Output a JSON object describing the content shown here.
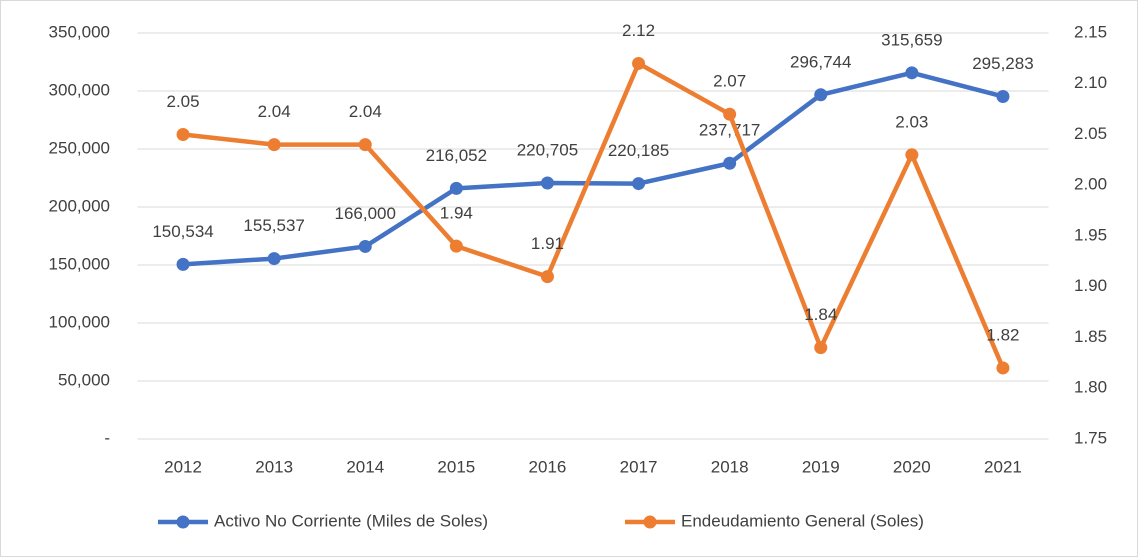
{
  "chart_data": {
    "type": "line",
    "categories": [
      "2012",
      "2013",
      "2014",
      "2015",
      "2016",
      "2017",
      "2018",
      "2019",
      "2020",
      "2021"
    ],
    "series": [
      {
        "name": "Activo No Corriente (Miles de Soles)",
        "color": "#4472c4",
        "values": [
          150534,
          155537,
          166000,
          216052,
          220705,
          220185,
          237717,
          296744,
          315659,
          295283
        ],
        "value_labels": [
          "150,534",
          "155,537",
          "166,000",
          "216,052",
          "220,705",
          "220,185",
          "237,717",
          "296,744",
          "315,659",
          "295,283"
        ]
      },
      {
        "name": "Endeudamiento General (Soles)",
        "color": "#ed7d31",
        "axis": "y2",
        "values": [
          2.05,
          2.04,
          2.04,
          1.94,
          1.91,
          2.12,
          2.07,
          1.84,
          2.03,
          1.82
        ]
      }
    ],
    "ylim": [
      0,
      350000
    ],
    "yticks": [
      {
        "value": 0,
        "label": "-"
      },
      {
        "value": 50000,
        "label": "50,000"
      },
      {
        "value": 100000,
        "label": "100,000"
      },
      {
        "value": 150000,
        "label": "150,000"
      },
      {
        "value": 200000,
        "label": "200,000"
      },
      {
        "value": 250000,
        "label": "250,000"
      },
      {
        "value": 300000,
        "label": "300,000"
      },
      {
        "value": 350000,
        "label": "350,000"
      }
    ],
    "y2lim": [
      1.75,
      2.15
    ],
    "y2ticks": [
      1.75,
      {
        "value": 1.8,
        "label": "1.80"
      },
      1.85,
      {
        "value": 1.9,
        "label": "1.90"
      },
      1.95,
      {
        "value": 2.0,
        "label": "2.00"
      },
      2.05,
      {
        "value": 2.1,
        "label": "2.10"
      },
      2.15
    ],
    "grid": true,
    "legend": "bottom"
  }
}
